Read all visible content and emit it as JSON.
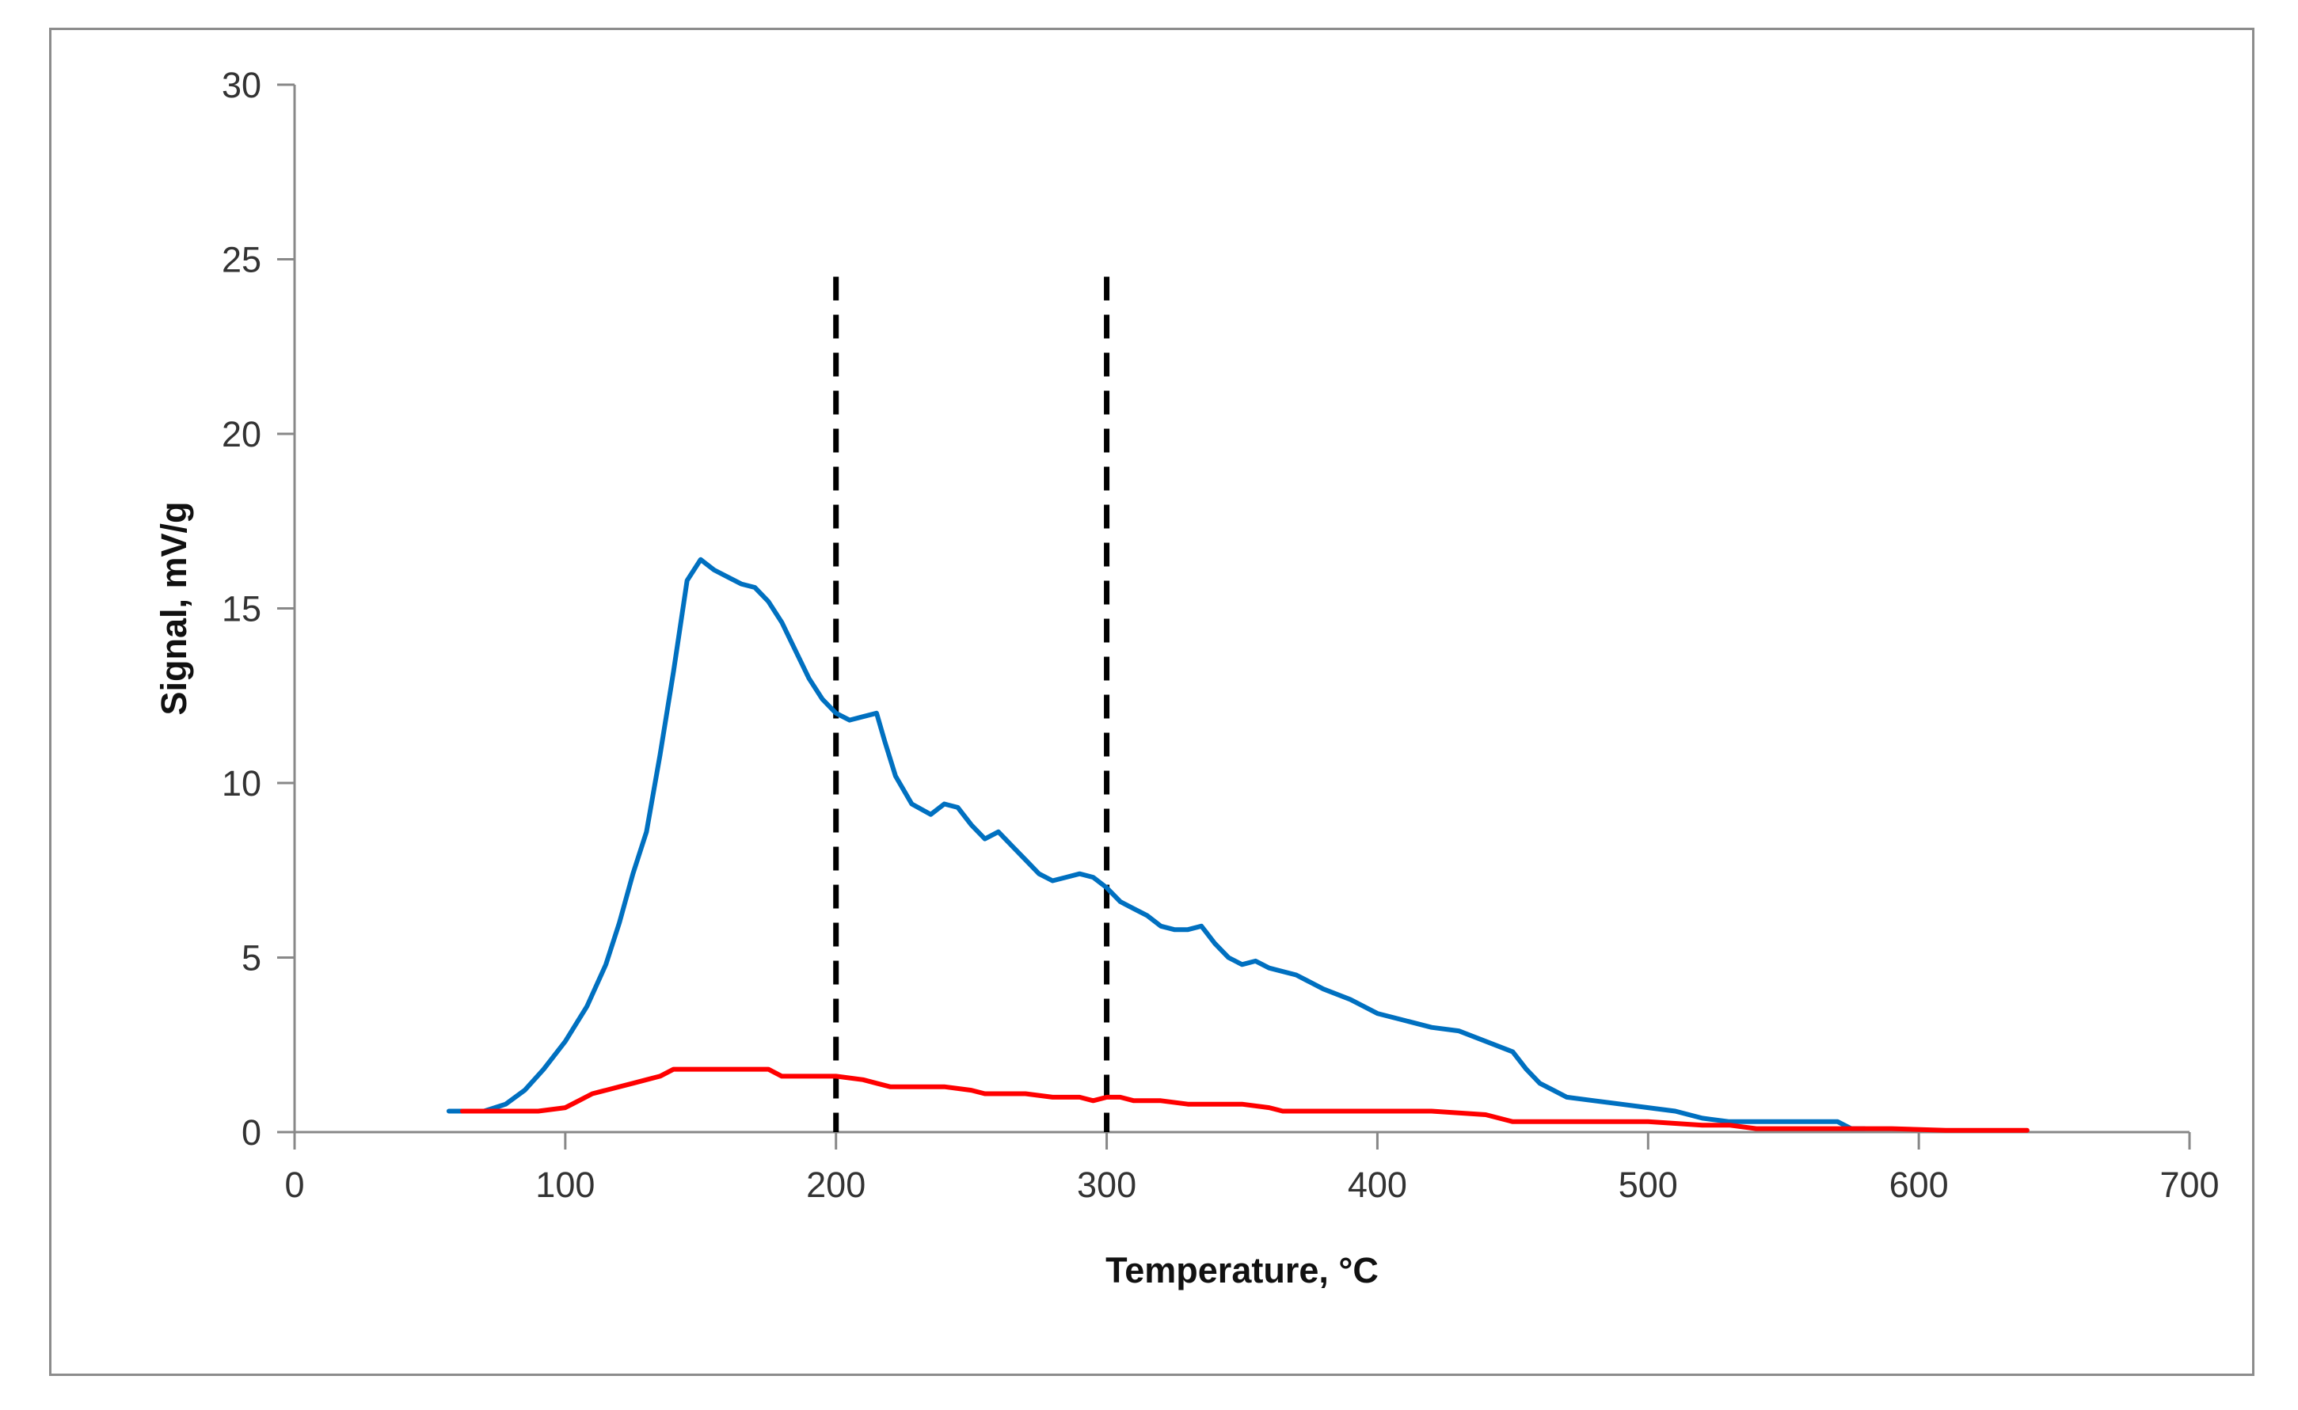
{
  "chart_data": {
    "type": "line",
    "title": "",
    "xlabel": "Temperature, °C",
    "ylabel": "Signal, mV/g",
    "xlim": [
      0,
      700
    ],
    "ylim": [
      0,
      30
    ],
    "x_ticks": [
      0,
      100,
      200,
      300,
      400,
      500,
      600,
      700
    ],
    "y_ticks": [
      0,
      5,
      10,
      15,
      20,
      25,
      30
    ],
    "x_tick_labels": [
      "0",
      "100",
      "200",
      "300",
      "400",
      "500",
      "600",
      "700"
    ],
    "y_tick_labels": [
      "0",
      "5",
      "10",
      "15",
      "20",
      "25",
      "30"
    ],
    "grid": false,
    "legend": "none",
    "reference_lines": [
      {
        "x": 200,
        "y_range": [
          0,
          24.5
        ],
        "color": "#000000",
        "style": "dashed"
      },
      {
        "x": 300,
        "y_range": [
          0,
          24.5
        ],
        "color": "#000000",
        "style": "dashed"
      }
    ],
    "series": [
      {
        "name": "blue",
        "color": "#0070c0",
        "points": [
          [
            57,
            0.6
          ],
          [
            62,
            0.6
          ],
          [
            70,
            0.6
          ],
          [
            78,
            0.8
          ],
          [
            85,
            1.2
          ],
          [
            92,
            1.8
          ],
          [
            100,
            2.6
          ],
          [
            108,
            3.6
          ],
          [
            115,
            4.8
          ],
          [
            120,
            6.0
          ],
          [
            125,
            7.4
          ],
          [
            130,
            8.6
          ],
          [
            135,
            10.8
          ],
          [
            140,
            13.2
          ],
          [
            145,
            15.8
          ],
          [
            150,
            16.4
          ],
          [
            155,
            16.1
          ],
          [
            160,
            15.9
          ],
          [
            165,
            15.7
          ],
          [
            170,
            15.6
          ],
          [
            175,
            15.2
          ],
          [
            180,
            14.6
          ],
          [
            185,
            13.8
          ],
          [
            190,
            13.0
          ],
          [
            195,
            12.4
          ],
          [
            200,
            12.0
          ],
          [
            205,
            11.8
          ],
          [
            210,
            11.9
          ],
          [
            215,
            12.0
          ],
          [
            218,
            11.2
          ],
          [
            222,
            10.2
          ],
          [
            228,
            9.4
          ],
          [
            235,
            9.1
          ],
          [
            240,
            9.4
          ],
          [
            245,
            9.3
          ],
          [
            250,
            8.8
          ],
          [
            255,
            8.4
          ],
          [
            260,
            8.6
          ],
          [
            265,
            8.2
          ],
          [
            270,
            7.8
          ],
          [
            275,
            7.4
          ],
          [
            280,
            7.2
          ],
          [
            285,
            7.3
          ],
          [
            290,
            7.4
          ],
          [
            295,
            7.3
          ],
          [
            300,
            7.0
          ],
          [
            305,
            6.6
          ],
          [
            310,
            6.4
          ],
          [
            315,
            6.2
          ],
          [
            320,
            5.9
          ],
          [
            325,
            5.8
          ],
          [
            330,
            5.8
          ],
          [
            335,
            5.9
          ],
          [
            340,
            5.4
          ],
          [
            345,
            5.0
          ],
          [
            350,
            4.8
          ],
          [
            355,
            4.9
          ],
          [
            360,
            4.7
          ],
          [
            370,
            4.5
          ],
          [
            380,
            4.1
          ],
          [
            390,
            3.8
          ],
          [
            400,
            3.4
          ],
          [
            410,
            3.2
          ],
          [
            420,
            3.0
          ],
          [
            430,
            2.9
          ],
          [
            440,
            2.6
          ],
          [
            450,
            2.3
          ],
          [
            455,
            1.8
          ],
          [
            460,
            1.4
          ],
          [
            465,
            1.2
          ],
          [
            470,
            1.0
          ],
          [
            480,
            0.9
          ],
          [
            490,
            0.8
          ],
          [
            500,
            0.7
          ],
          [
            510,
            0.6
          ],
          [
            520,
            0.4
          ],
          [
            530,
            0.3
          ],
          [
            540,
            0.3
          ],
          [
            550,
            0.3
          ],
          [
            560,
            0.3
          ],
          [
            570,
            0.3
          ],
          [
            575,
            0.1
          ],
          [
            580,
            0.1
          ]
        ]
      },
      {
        "name": "red",
        "color": "#ff0000",
        "points": [
          [
            62,
            0.6
          ],
          [
            70,
            0.6
          ],
          [
            80,
            0.6
          ],
          [
            90,
            0.6
          ],
          [
            100,
            0.7
          ],
          [
            105,
            0.9
          ],
          [
            110,
            1.1
          ],
          [
            115,
            1.2
          ],
          [
            120,
            1.3
          ],
          [
            125,
            1.4
          ],
          [
            130,
            1.5
          ],
          [
            135,
            1.6
          ],
          [
            140,
            1.8
          ],
          [
            150,
            1.8
          ],
          [
            160,
            1.8
          ],
          [
            170,
            1.8
          ],
          [
            175,
            1.8
          ],
          [
            180,
            1.6
          ],
          [
            190,
            1.6
          ],
          [
            200,
            1.6
          ],
          [
            210,
            1.5
          ],
          [
            215,
            1.4
          ],
          [
            220,
            1.3
          ],
          [
            230,
            1.3
          ],
          [
            240,
            1.3
          ],
          [
            250,
            1.2
          ],
          [
            255,
            1.1
          ],
          [
            260,
            1.1
          ],
          [
            270,
            1.1
          ],
          [
            280,
            1.0
          ],
          [
            290,
            1.0
          ],
          [
            295,
            0.9
          ],
          [
            300,
            1.0
          ],
          [
            305,
            1.0
          ],
          [
            310,
            0.9
          ],
          [
            320,
            0.9
          ],
          [
            330,
            0.8
          ],
          [
            340,
            0.8
          ],
          [
            350,
            0.8
          ],
          [
            360,
            0.7
          ],
          [
            365,
            0.6
          ],
          [
            380,
            0.6
          ],
          [
            400,
            0.6
          ],
          [
            420,
            0.6
          ],
          [
            440,
            0.5
          ],
          [
            450,
            0.3
          ],
          [
            470,
            0.3
          ],
          [
            500,
            0.3
          ],
          [
            520,
            0.2
          ],
          [
            530,
            0.2
          ],
          [
            540,
            0.1
          ],
          [
            550,
            0.1
          ],
          [
            570,
            0.1
          ],
          [
            590,
            0.1
          ],
          [
            610,
            0.05
          ],
          [
            640,
            0.05
          ]
        ]
      }
    ]
  }
}
